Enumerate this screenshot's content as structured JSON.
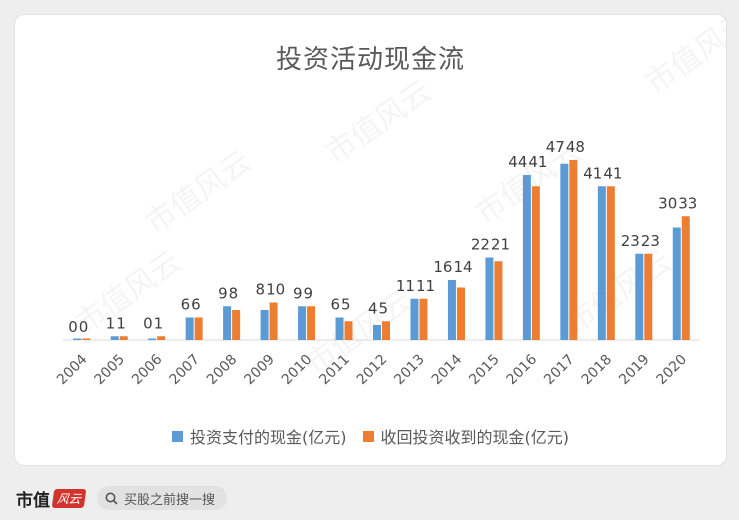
{
  "chart_data": {
    "type": "bar",
    "title": "投资活动现金流",
    "categories": [
      "2004",
      "2005",
      "2006",
      "2007",
      "2008",
      "2009",
      "2010",
      "2011",
      "2012",
      "2013",
      "2014",
      "2015",
      "2016",
      "2017",
      "2018",
      "2019",
      "2020"
    ],
    "series": [
      {
        "name": "投资支付的现金(亿元)",
        "color": "#5b9bd5",
        "values": [
          0,
          1,
          0,
          6,
          9,
          8,
          9,
          6,
          4,
          11,
          16,
          22,
          44,
          47,
          41,
          23,
          30
        ]
      },
      {
        "name": "收回投资收到的现金(亿元)",
        "color": "#ed7d31",
        "values": [
          0,
          1,
          1,
          6,
          8,
          10,
          9,
          5,
          5,
          11,
          14,
          21,
          41,
          48,
          41,
          23,
          33
        ]
      }
    ],
    "ylim": [
      0,
      55
    ],
    "grid": false,
    "legend_position": "bottom",
    "xlabel": "",
    "ylabel": ""
  },
  "watermark": {
    "text": "市值风云"
  },
  "footer": {
    "brand": "市值",
    "brand_badge": "风云",
    "search_icon": "search-icon",
    "search_text": "买股之前搜一搜"
  }
}
